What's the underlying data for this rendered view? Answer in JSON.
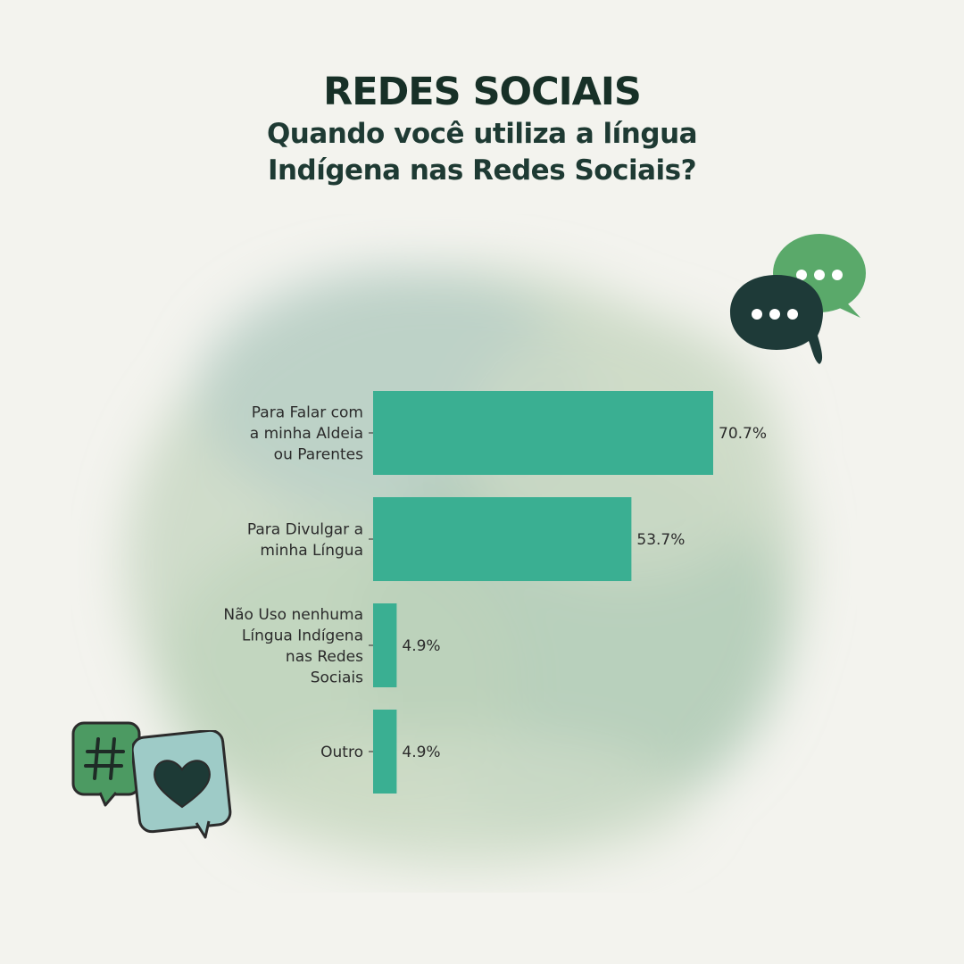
{
  "header": {
    "title": "REDES SOCIAIS",
    "subtitle_line1": "Quando você utiliza a língua",
    "subtitle_line2": "Indígena nas Redes Sociais?"
  },
  "colors": {
    "bar": "#3aaf92",
    "title": "#173027",
    "background": "#f3f3ee"
  },
  "icons": [
    "chat-bubbles-icon",
    "hashtag-bubble-icon",
    "heart-bubble-icon"
  ],
  "chart_data": {
    "type": "bar",
    "orientation": "horizontal",
    "title": "",
    "xlabel": "",
    "ylabel": "",
    "xlim": [
      0,
      70.7
    ],
    "grid": false,
    "categories": [
      [
        "Para Falar com",
        "a minha Aldeia",
        "ou Parentes"
      ],
      [
        "Para Divulgar a",
        "minha Língua"
      ],
      [
        "Não Uso nenhuma",
        "Língua Indígena",
        "nas Redes",
        "Sociais"
      ],
      [
        "Outro"
      ]
    ],
    "values": [
      70.7,
      53.7,
      4.9,
      4.9
    ],
    "value_labels": [
      "70.7%",
      "53.7%",
      "4.9%",
      "4.9%"
    ]
  }
}
